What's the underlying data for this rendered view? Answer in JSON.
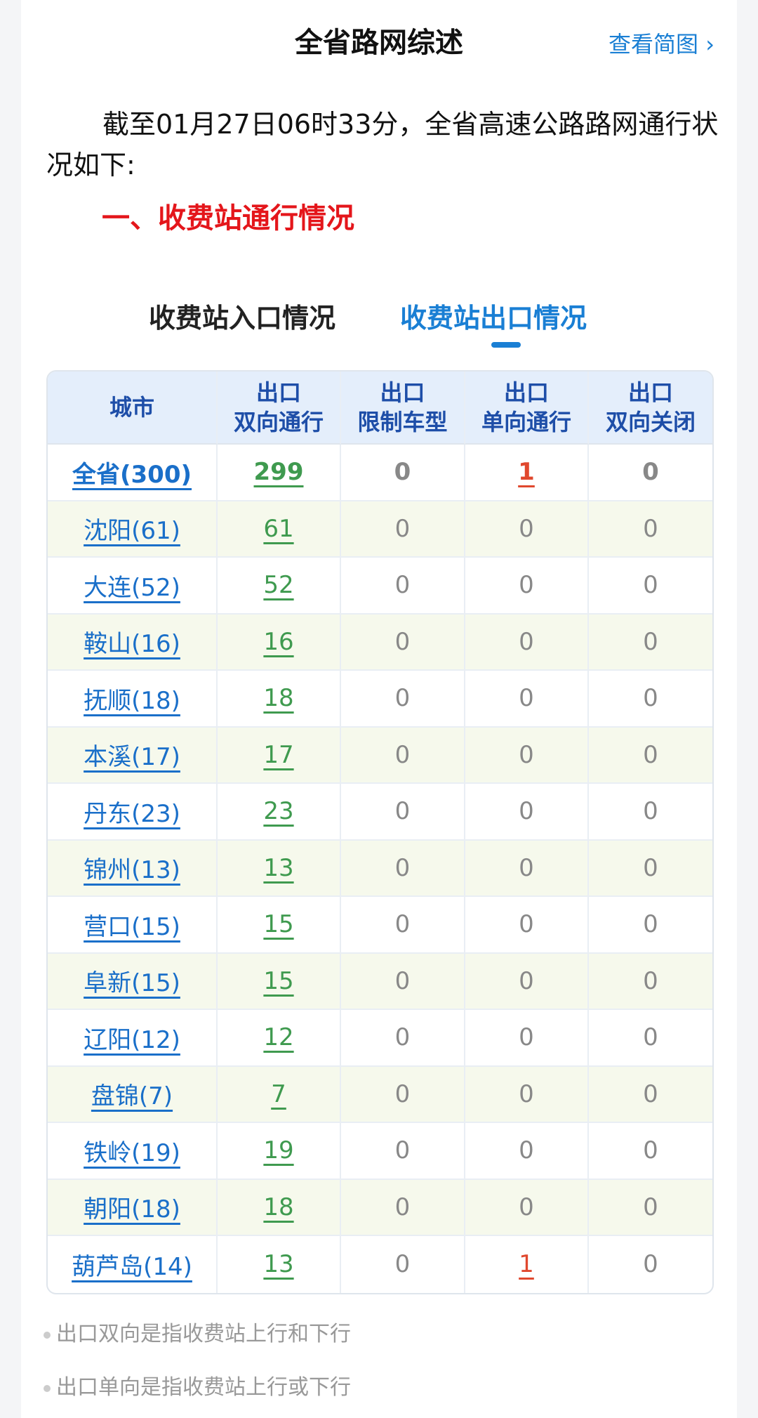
{
  "header": {
    "title": "全省路网综述",
    "link": "查看简图",
    "link_icon": "chevron-right"
  },
  "intro": "截至01月27日06时33分，全省高速公路路网通行状况如下:",
  "section_title": "一、收费站通行情况",
  "tabs": [
    {
      "label": "收费站入口情况",
      "active": false
    },
    {
      "label": "收费站出口情况",
      "active": true
    }
  ],
  "table": {
    "headers": [
      [
        "城市"
      ],
      [
        "出口",
        "双向通行"
      ],
      [
        "出口",
        "限制车型"
      ],
      [
        "出口",
        "单向通行"
      ],
      [
        "出口",
        "双向关闭"
      ]
    ],
    "rows": [
      [
        "全省(300)",
        "299",
        "0",
        "1",
        "0"
      ],
      [
        "沈阳(61)",
        "61",
        "0",
        "0",
        "0"
      ],
      [
        "大连(52)",
        "52",
        "0",
        "0",
        "0"
      ],
      [
        "鞍山(16)",
        "16",
        "0",
        "0",
        "0"
      ],
      [
        "抚顺(18)",
        "18",
        "0",
        "0",
        "0"
      ],
      [
        "本溪(17)",
        "17",
        "0",
        "0",
        "0"
      ],
      [
        "丹东(23)",
        "23",
        "0",
        "0",
        "0"
      ],
      [
        "锦州(13)",
        "13",
        "0",
        "0",
        "0"
      ],
      [
        "营口(15)",
        "15",
        "0",
        "0",
        "0"
      ],
      [
        "阜新(15)",
        "15",
        "0",
        "0",
        "0"
      ],
      [
        "辽阳(12)",
        "12",
        "0",
        "0",
        "0"
      ],
      [
        "盘锦(7)",
        "7",
        "0",
        "0",
        "0"
      ],
      [
        "铁岭(19)",
        "19",
        "0",
        "0",
        "0"
      ],
      [
        "朝阳(18)",
        "18",
        "0",
        "0",
        "0"
      ],
      [
        "葫芦岛(14)",
        "13",
        "0",
        "1",
        "0"
      ]
    ]
  },
  "notes": [
    "出口双向是指收费站上行和下行",
    "出口单向是指收费站上行或下行"
  ],
  "colors": {
    "accent": "#1a7fd4",
    "section": "#e4161b",
    "open": "#3f9a4f",
    "oneway": "#e0482e"
  }
}
